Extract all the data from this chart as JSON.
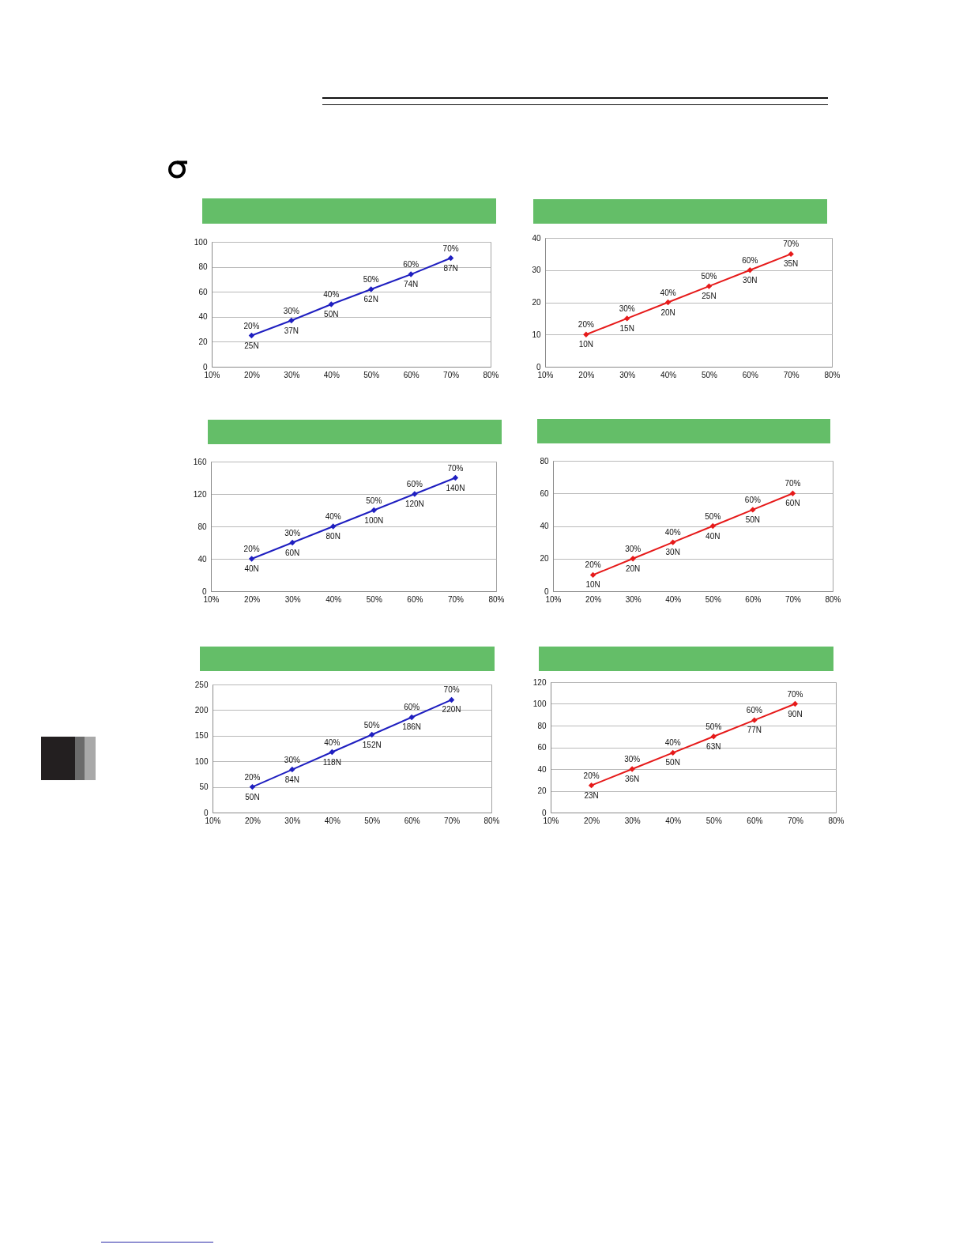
{
  "chart_data": [
    {
      "type": "line",
      "x": [
        20,
        30,
        40,
        50,
        60,
        70
      ],
      "series": [
        {
          "color": "#1f1fc0",
          "values": [
            25,
            37,
            50,
            62,
            74,
            87
          ],
          "value_labels": [
            "25N",
            "37N",
            "50N",
            "62N",
            "74N",
            "87N"
          ]
        }
      ],
      "xlim": [
        10,
        80
      ],
      "xticks": [
        {
          "value": 10,
          "label": "10%"
        },
        {
          "value": 20,
          "label": "20%"
        },
        {
          "value": 30,
          "label": "30%"
        },
        {
          "value": 40,
          "label": "40%"
        },
        {
          "value": 50,
          "label": "50%"
        },
        {
          "value": 60,
          "label": "60%"
        },
        {
          "value": 70,
          "label": "70%"
        },
        {
          "value": 80,
          "label": "80%"
        }
      ],
      "ylim": [
        0,
        100
      ],
      "yticks": [
        0,
        20,
        40,
        60,
        80,
        100
      ],
      "grid": "y",
      "marker": "diamond",
      "annotations": [
        {
          "text": "20%",
          "x": 20,
          "y": 25
        },
        {
          "text": "30%",
          "x": 30,
          "y": 37
        },
        {
          "text": "40%",
          "x": 40,
          "y": 50
        },
        {
          "text": "50%",
          "x": 50,
          "y": 62
        },
        {
          "text": "60%",
          "x": 60,
          "y": 74
        },
        {
          "text": "70%",
          "x": 70,
          "y": 87
        }
      ]
    },
    {
      "type": "line",
      "x": [
        20,
        30,
        40,
        50,
        60,
        70
      ],
      "series": [
        {
          "color": "#e61a1a",
          "values": [
            10,
            15,
            20,
            25,
            30,
            35
          ],
          "value_labels": [
            "10N",
            "15N",
            "20N",
            "25N",
            "30N",
            "35N"
          ]
        }
      ],
      "xlim": [
        10,
        80
      ],
      "xticks": [
        {
          "value": 10,
          "label": "10%"
        },
        {
          "value": 20,
          "label": "20%"
        },
        {
          "value": 30,
          "label": "30%"
        },
        {
          "value": 40,
          "label": "40%"
        },
        {
          "value": 50,
          "label": "50%"
        },
        {
          "value": 60,
          "label": "60%"
        },
        {
          "value": 70,
          "label": "70%"
        },
        {
          "value": 80,
          "label": "80%"
        }
      ],
      "ylim": [
        0,
        40
      ],
      "yticks": [
        0,
        10,
        20,
        30,
        40
      ],
      "grid": "y",
      "marker": "diamond",
      "annotations": [
        {
          "text": "20%",
          "x": 20,
          "y": 10
        },
        {
          "text": "30%",
          "x": 30,
          "y": 15
        },
        {
          "text": "40%",
          "x": 40,
          "y": 20
        },
        {
          "text": "50%",
          "x": 50,
          "y": 25
        },
        {
          "text": "60%",
          "x": 60,
          "y": 30
        },
        {
          "text": "70%",
          "x": 70,
          "y": 35
        }
      ]
    },
    {
      "type": "line",
      "x": [
        20,
        30,
        40,
        50,
        60,
        70
      ],
      "series": [
        {
          "color": "#1f1fc0",
          "values": [
            40,
            60,
            80,
            100,
            120,
            140
          ],
          "value_labels": [
            "40N",
            "60N",
            "80N",
            "100N",
            "120N",
            "140N"
          ]
        }
      ],
      "xlim": [
        10,
        80
      ],
      "xticks": [
        {
          "value": 10,
          "label": "10%"
        },
        {
          "value": 20,
          "label": "20%"
        },
        {
          "value": 30,
          "label": "30%"
        },
        {
          "value": 40,
          "label": "40%"
        },
        {
          "value": 50,
          "label": "50%"
        },
        {
          "value": 60,
          "label": "60%"
        },
        {
          "value": 70,
          "label": "70%"
        },
        {
          "value": 80,
          "label": "80%"
        }
      ],
      "ylim": [
        0,
        160
      ],
      "yticks": [
        0,
        40,
        80,
        120,
        160
      ],
      "grid": "y",
      "marker": "diamond",
      "annotations": [
        {
          "text": "20%",
          "x": 20,
          "y": 40
        },
        {
          "text": "30%",
          "x": 30,
          "y": 60
        },
        {
          "text": "40%",
          "x": 40,
          "y": 80
        },
        {
          "text": "50%",
          "x": 50,
          "y": 100
        },
        {
          "text": "60%",
          "x": 60,
          "y": 120
        },
        {
          "text": "70%",
          "x": 70,
          "y": 140
        }
      ]
    },
    {
      "type": "line",
      "x": [
        20,
        30,
        40,
        50,
        60,
        70
      ],
      "series": [
        {
          "color": "#e61a1a",
          "values": [
            10,
            20,
            30,
            40,
            50,
            60
          ],
          "value_labels": [
            "10N",
            "20N",
            "30N",
            "40N",
            "50N",
            "60N"
          ]
        }
      ],
      "xlim": [
        10,
        80
      ],
      "xticks": [
        {
          "value": 10,
          "label": "10%"
        },
        {
          "value": 20,
          "label": "20%"
        },
        {
          "value": 30,
          "label": "30%"
        },
        {
          "value": 40,
          "label": "40%"
        },
        {
          "value": 50,
          "label": "50%"
        },
        {
          "value": 60,
          "label": "60%"
        },
        {
          "value": 70,
          "label": "70%"
        },
        {
          "value": 80,
          "label": "80%"
        }
      ],
      "ylim": [
        0,
        80
      ],
      "yticks": [
        0,
        20,
        40,
        60,
        80
      ],
      "grid": "y",
      "marker": "diamond",
      "annotations": [
        {
          "text": "20%",
          "x": 20,
          "y": 10
        },
        {
          "text": "30%",
          "x": 30,
          "y": 20
        },
        {
          "text": "40%",
          "x": 40,
          "y": 30
        },
        {
          "text": "50%",
          "x": 50,
          "y": 40
        },
        {
          "text": "60%",
          "x": 60,
          "y": 50
        },
        {
          "text": "70%",
          "x": 70,
          "y": 60
        }
      ]
    },
    {
      "type": "line",
      "x": [
        20,
        30,
        40,
        50,
        60,
        70
      ],
      "series": [
        {
          "color": "#1f1fc0",
          "values": [
            50,
            84,
            118,
            152,
            186,
            220
          ],
          "value_labels": [
            "50N",
            "84N",
            "118N",
            "152N",
            "186N",
            "220N"
          ]
        }
      ],
      "xlim": [
        10,
        80
      ],
      "xticks": [
        {
          "value": 10,
          "label": "10%"
        },
        {
          "value": 20,
          "label": "20%"
        },
        {
          "value": 30,
          "label": "30%"
        },
        {
          "value": 40,
          "label": "40%"
        },
        {
          "value": 50,
          "label": "50%"
        },
        {
          "value": 60,
          "label": "60%"
        },
        {
          "value": 70,
          "label": "70%"
        },
        {
          "value": 80,
          "label": "80%"
        }
      ],
      "ylim": [
        0,
        250
      ],
      "yticks": [
        0,
        50,
        100,
        150,
        200,
        250
      ],
      "grid": "y",
      "marker": "diamond",
      "annotations": [
        {
          "text": "20%",
          "x": 20,
          "y": 50
        },
        {
          "text": "30%",
          "x": 30,
          "y": 84
        },
        {
          "text": "40%",
          "x": 40,
          "y": 118
        },
        {
          "text": "50%",
          "x": 50,
          "y": 152
        },
        {
          "text": "60%",
          "x": 60,
          "y": 186
        },
        {
          "text": "70%",
          "x": 70,
          "y": 220
        }
      ]
    },
    {
      "type": "line",
      "x": [
        20,
        30,
        40,
        50,
        60,
        70
      ],
      "series": [
        {
          "color": "#e61a1a",
          "values": [
            25,
            40,
            55,
            70,
            85,
            100
          ]
        }
      ],
      "xlim": [
        10,
        80
      ],
      "xticks": [
        {
          "value": 10,
          "label": "10%"
        },
        {
          "value": 20,
          "label": "20%"
        },
        {
          "value": 30,
          "label": "30%"
        },
        {
          "value": 40,
          "label": "40%"
        },
        {
          "value": 50,
          "label": "50%"
        },
        {
          "value": 60,
          "label": "60%"
        },
        {
          "value": 70,
          "label": "70%"
        },
        {
          "value": 80,
          "label": "80%"
        }
      ],
      "ylim": [
        0,
        120
      ],
      "yticks": [
        0,
        20,
        40,
        60,
        80,
        100,
        120
      ],
      "grid": "y",
      "marker": "diamond",
      "annotations": [
        {
          "text": "20%",
          "x": 20,
          "y": 25
        },
        {
          "text": "30%",
          "x": 30,
          "y": 40
        },
        {
          "text": "40%",
          "x": 40,
          "y": 55
        },
        {
          "text": "50%",
          "x": 50,
          "y": 70
        },
        {
          "text": "60%",
          "x": 60,
          "y": 85
        },
        {
          "text": "70%",
          "x": 70,
          "y": 100
        },
        {
          "text": "23N",
          "x": 20,
          "y": 25
        },
        {
          "text": "36N",
          "x": 30,
          "y": 40
        },
        {
          "text": "50N",
          "x": 40,
          "y": 55
        },
        {
          "text": "63N",
          "x": 50,
          "y": 70
        },
        {
          "text": "77N",
          "x": 60,
          "y": 85
        },
        {
          "text": "90N",
          "x": 70,
          "y": 100
        }
      ]
    }
  ]
}
